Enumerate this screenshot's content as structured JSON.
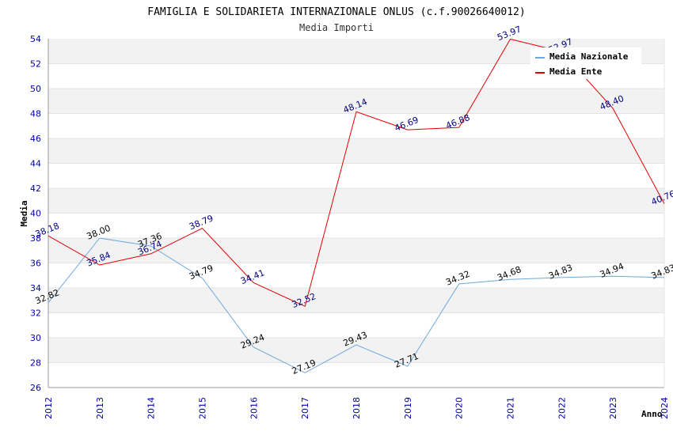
{
  "chart_data": {
    "type": "line",
    "title": "FAMIGLIA E SOLIDARIETA INTERNAZIONALE ONLUS (c.f.90026640012)",
    "subtitle": "Media Importi",
    "xlabel": "Anno",
    "ylabel": "Media",
    "ylim": [
      26,
      54
    ],
    "yticks": [
      "26",
      "28",
      "30",
      "32",
      "34",
      "36",
      "38",
      "40",
      "42",
      "44",
      "46",
      "48",
      "50",
      "52",
      "54"
    ],
    "categories": [
      "2012",
      "2013",
      "2014",
      "2015",
      "2016",
      "2017",
      "2018",
      "2019",
      "2020",
      "2021",
      "2022",
      "2023",
      "2024"
    ],
    "grid": "horizontal alternating bands",
    "legend_position": "top-right",
    "series": [
      {
        "name": "Media Nazionale",
        "color": "#6fa8dc",
        "values": [
          32.82,
          38.0,
          37.36,
          34.79,
          29.24,
          27.19,
          29.43,
          27.71,
          34.32,
          34.68,
          34.83,
          34.94,
          34.83
        ],
        "labels": [
          "32.82",
          "38.00",
          "37.36",
          "34.79",
          "29.24",
          "27.19",
          "29.43",
          "27.71",
          "34.32",
          "34.68",
          "34.83",
          "34.94",
          "34.83"
        ]
      },
      {
        "name": "Media Ente",
        "color": "#e00000",
        "values": [
          38.18,
          35.84,
          36.74,
          38.79,
          34.41,
          32.52,
          48.14,
          46.69,
          46.88,
          53.97,
          52.97,
          48.4,
          40.76
        ],
        "labels": [
          "38.18",
          "35.84",
          "36.74",
          "38.79",
          "34.41",
          "32.52",
          "48.14",
          "46.69",
          "46.88",
          "53.97",
          "52.97",
          "48.40",
          "40.76"
        ]
      }
    ]
  }
}
